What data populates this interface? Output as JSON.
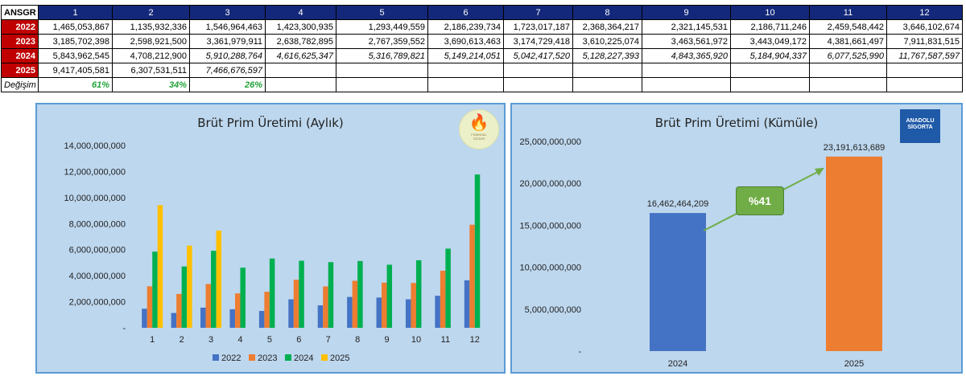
{
  "table": {
    "corner": "ANSGR",
    "months": [
      "1",
      "2",
      "3",
      "4",
      "5",
      "6",
      "7",
      "8",
      "9",
      "10",
      "11",
      "12"
    ],
    "rows": [
      {
        "year": "2022",
        "values": [
          "1,465,053,867",
          "1,135,932,336",
          "1,546,964,463",
          "1,423,300,935",
          "1,293,449,559",
          "2,186,239,734",
          "1,723,017,187",
          "2,368,364,217",
          "2,321,145,531",
          "2,186,711,246",
          "2,459,548,442",
          "3,646,102,674"
        ]
      },
      {
        "year": "2023",
        "values": [
          "3,185,702,398",
          "2,598,921,500",
          "3,361,979,911",
          "2,638,782,895",
          "2,767,359,552",
          "3,690,613,463",
          "3,174,729,418",
          "3,610,225,074",
          "3,463,561,972",
          "3,443,049,172",
          "4,381,661,497",
          "7,911,831,515"
        ]
      },
      {
        "year": "2024",
        "values": [
          "5,843,962,545",
          "4,708,212,900",
          "5,910,288,764",
          "4,616,625,347",
          "5,316,789,821",
          "5,149,214,051",
          "5,042,417,520",
          "5,128,227,393",
          "4,843,365,920",
          "5,184,904,337",
          "6,077,525,990",
          "11,767,587,597"
        ]
      },
      {
        "year": "2025",
        "values": [
          "9,417,405,581",
          "6,307,531,511",
          "7,466,676,597",
          "",
          "",
          "",
          "",
          "",
          "",
          "",
          "",
          ""
        ]
      }
    ],
    "change_label": "Değişim",
    "change": [
      "61%",
      "34%",
      "26%",
      "",
      "",
      "",
      "",
      "",
      "",
      "",
      "",
      ""
    ]
  },
  "logos": {
    "left_text_1": "FİNANSAL",
    "left_text_2": "ÖZGÜR",
    "right_text_1": "ANADOLU",
    "right_text_2": "SİGORTA"
  },
  "colors": {
    "2022": "#4472c4",
    "2023": "#ed7d31",
    "2024": "#00b050",
    "2025": "#ffc000"
  },
  "chart_data": [
    {
      "type": "bar",
      "title": "Brüt Prim Üretimi (Aylık)",
      "categories": [
        "1",
        "2",
        "3",
        "4",
        "5",
        "6",
        "7",
        "8",
        "9",
        "10",
        "11",
        "12"
      ],
      "ylim": [
        0,
        14000000000
      ],
      "yticks": [
        0,
        2000000000,
        4000000000,
        6000000000,
        8000000000,
        10000000000,
        12000000000,
        14000000000
      ],
      "ytick_labels": [
        "-",
        "2,000,000,000",
        "4,000,000,000",
        "6,000,000,000",
        "8,000,000,000",
        "10,000,000,000",
        "12,000,000,000",
        "14,000,000,000"
      ],
      "legend_position": "bottom",
      "series": [
        {
          "name": "2022",
          "values": [
            1465053867,
            1135932336,
            1546964463,
            1423300935,
            1293449559,
            2186239734,
            1723017187,
            2368364217,
            2321145531,
            2186711246,
            2459548442,
            3646102674
          ]
        },
        {
          "name": "2023",
          "values": [
            3185702398,
            2598921500,
            3361979911,
            2638782895,
            2767359552,
            3690613463,
            3174729418,
            3610225074,
            3463561972,
            3443049172,
            4381661497,
            7911831515
          ]
        },
        {
          "name": "2024",
          "values": [
            5843962545,
            4708212900,
            5910288764,
            4616625347,
            5316789821,
            5149214051,
            5042417520,
            5128227393,
            4843365920,
            5184904337,
            6077525990,
            11767587597
          ]
        },
        {
          "name": "2025",
          "values": [
            9417405581,
            6307531511,
            7466676597,
            null,
            null,
            null,
            null,
            null,
            null,
            null,
            null,
            null
          ]
        }
      ]
    },
    {
      "type": "bar",
      "title": "Brüt Prim Üretimi (Kümüle)",
      "categories": [
        "2024",
        "2025"
      ],
      "values": [
        16462464209,
        23191613689
      ],
      "value_labels": [
        "16,462,464,209",
        "23,191,613,689"
      ],
      "ylim": [
        0,
        25000000000
      ],
      "yticks": [
        0,
        5000000000,
        10000000000,
        15000000000,
        20000000000,
        25000000000
      ],
      "ytick_labels": [
        "-",
        "5,000,000,000",
        "10,000,000,000",
        "15,000,000,000",
        "20,000,000,000",
        "25,000,000,000"
      ],
      "annotation": "%41"
    }
  ]
}
